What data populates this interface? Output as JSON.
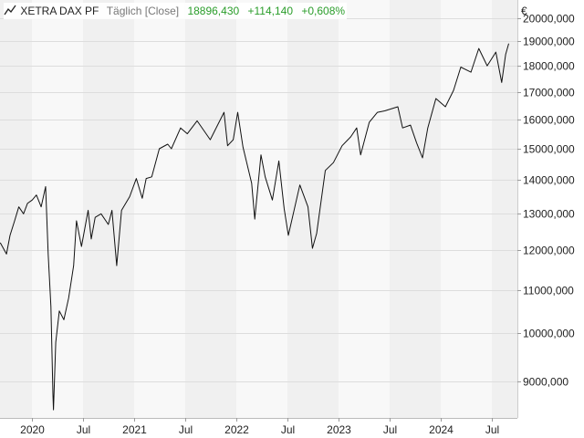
{
  "legend": {
    "name": "XETRA DAX PF",
    "period": "Täglich [Close]",
    "last": "18896,430",
    "change": "+114,140",
    "change_pct": "+0,608%",
    "change_color": "#2a9d2a",
    "icon": "line-chart-icon"
  },
  "chart_data": {
    "type": "line",
    "title": "",
    "xlabel": "",
    "ylabel": "",
    "currency_label": "€",
    "y_scale": "log",
    "ylim": [
      8300,
      20800
    ],
    "xlim": [
      "2019-09-09",
      "2024-09-30"
    ],
    "grid": true,
    "y_ticks": [
      {
        "value": 9000,
        "label": "9000,000"
      },
      {
        "value": 10000,
        "label": "10000,000"
      },
      {
        "value": 11000,
        "label": "11000,000"
      },
      {
        "value": 12000,
        "label": "12000,000"
      },
      {
        "value": 13000,
        "label": "13000,000"
      },
      {
        "value": 14000,
        "label": "14000,000"
      },
      {
        "value": 15000,
        "label": "15000,000"
      },
      {
        "value": 16000,
        "label": "16000,000"
      },
      {
        "value": 17000,
        "label": "17000,000"
      },
      {
        "value": 18000,
        "label": "18000,000"
      },
      {
        "value": 19000,
        "label": "19000,000"
      },
      {
        "value": 20000,
        "label": "20000,000"
      }
    ],
    "x_ticks": [
      {
        "date": "2020-01-01",
        "label": "2020"
      },
      {
        "date": "2020-07-01",
        "label": "Jul"
      },
      {
        "date": "2021-01-01",
        "label": "2021"
      },
      {
        "date": "2021-07-01",
        "label": "Jul"
      },
      {
        "date": "2022-01-01",
        "label": "2022"
      },
      {
        "date": "2022-07-01",
        "label": "Jul"
      },
      {
        "date": "2023-01-01",
        "label": "2023"
      },
      {
        "date": "2023-07-01",
        "label": "Jul"
      },
      {
        "date": "2024-01-01",
        "label": "2024"
      },
      {
        "date": "2024-07-01",
        "label": "Jul"
      }
    ],
    "series": [
      {
        "color": "#111111",
        "points": [
          [
            "2019-09-10",
            12200
          ],
          [
            "2019-10-02",
            11900
          ],
          [
            "2019-10-15",
            12400
          ],
          [
            "2019-10-31",
            12800
          ],
          [
            "2019-11-15",
            13200
          ],
          [
            "2019-12-02",
            13000
          ],
          [
            "2019-12-16",
            13300
          ],
          [
            "2020-01-02",
            13400
          ],
          [
            "2020-01-17",
            13550
          ],
          [
            "2020-02-03",
            13200
          ],
          [
            "2020-02-19",
            13800
          ],
          [
            "2020-02-28",
            11900
          ],
          [
            "2020-03-09",
            10600
          ],
          [
            "2020-03-16",
            8750
          ],
          [
            "2020-03-18",
            8450
          ],
          [
            "2020-03-26",
            9800
          ],
          [
            "2020-04-08",
            10500
          ],
          [
            "2020-04-24",
            10300
          ],
          [
            "2020-05-11",
            10800
          ],
          [
            "2020-05-29",
            11600
          ],
          [
            "2020-06-08",
            12800
          ],
          [
            "2020-06-26",
            12100
          ],
          [
            "2020-07-20",
            13100
          ],
          [
            "2020-07-31",
            12300
          ],
          [
            "2020-08-14",
            12900
          ],
          [
            "2020-09-04",
            13000
          ],
          [
            "2020-09-30",
            12700
          ],
          [
            "2020-10-13",
            13100
          ],
          [
            "2020-10-30",
            11600
          ],
          [
            "2020-11-16",
            13100
          ],
          [
            "2020-12-15",
            13500
          ],
          [
            "2021-01-08",
            14050
          ],
          [
            "2021-01-29",
            13450
          ],
          [
            "2021-02-12",
            14050
          ],
          [
            "2021-03-04",
            14100
          ],
          [
            "2021-03-31",
            15000
          ],
          [
            "2021-04-30",
            15150
          ],
          [
            "2021-05-13",
            15000
          ],
          [
            "2021-06-15",
            15700
          ],
          [
            "2021-07-09",
            15500
          ],
          [
            "2021-08-13",
            15950
          ],
          [
            "2021-09-29",
            15300
          ],
          [
            "2021-10-15",
            15600
          ],
          [
            "2021-11-17",
            16250
          ],
          [
            "2021-11-30",
            15100
          ],
          [
            "2021-12-20",
            15300
          ],
          [
            "2022-01-05",
            16250
          ],
          [
            "2022-01-24",
            15050
          ],
          [
            "2022-02-24",
            13900
          ],
          [
            "2022-03-07",
            12850
          ],
          [
            "2022-03-29",
            14800
          ],
          [
            "2022-04-13",
            14100
          ],
          [
            "2022-05-09",
            13400
          ],
          [
            "2022-06-01",
            14600
          ],
          [
            "2022-06-20",
            13150
          ],
          [
            "2022-07-05",
            12400
          ],
          [
            "2022-08-15",
            13850
          ],
          [
            "2022-09-13",
            13200
          ],
          [
            "2022-09-29",
            12050
          ],
          [
            "2022-10-14",
            12450
          ],
          [
            "2022-11-14",
            14300
          ],
          [
            "2022-12-13",
            14550
          ],
          [
            "2023-01-13",
            15100
          ],
          [
            "2023-02-13",
            15400
          ],
          [
            "2023-03-06",
            15700
          ],
          [
            "2023-03-20",
            14800
          ],
          [
            "2023-04-20",
            15900
          ],
          [
            "2023-05-19",
            16250
          ],
          [
            "2023-06-14",
            16300
          ],
          [
            "2023-07-31",
            16450
          ],
          [
            "2023-08-17",
            15700
          ],
          [
            "2023-09-14",
            15800
          ],
          [
            "2023-10-06",
            15200
          ],
          [
            "2023-10-27",
            14700
          ],
          [
            "2023-11-15",
            15700
          ],
          [
            "2023-12-14",
            16750
          ],
          [
            "2024-01-17",
            16450
          ],
          [
            "2024-02-15",
            17050
          ],
          [
            "2024-03-12",
            17950
          ],
          [
            "2024-04-17",
            17750
          ],
          [
            "2024-05-15",
            18700
          ],
          [
            "2024-06-14",
            18000
          ],
          [
            "2024-07-15",
            18550
          ],
          [
            "2024-08-05",
            17350
          ],
          [
            "2024-08-19",
            18450
          ],
          [
            "2024-08-30",
            18900
          ]
        ]
      }
    ]
  }
}
